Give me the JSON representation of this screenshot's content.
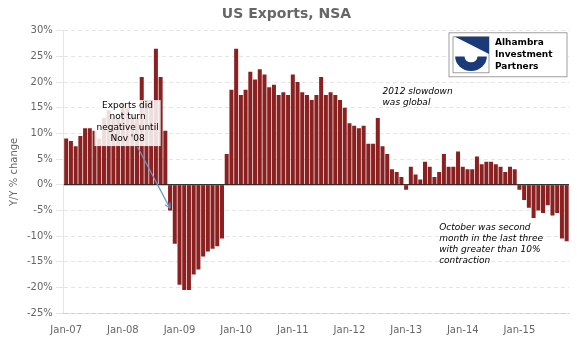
{
  "chart_data": {
    "type": "bar",
    "title": "US Exports, NSA",
    "ylabel": "Y/Y % change",
    "color": "#8B2020",
    "categories": [
      "Jan-07",
      null,
      null,
      null,
      null,
      null,
      null,
      null,
      null,
      null,
      null,
      null,
      "Jan-08",
      null,
      null,
      null,
      null,
      null,
      null,
      null,
      null,
      null,
      null,
      null,
      "Jan-09",
      null,
      null,
      null,
      null,
      null,
      null,
      null,
      null,
      null,
      null,
      null,
      "Jan-10",
      null,
      null,
      null,
      null,
      null,
      null,
      null,
      null,
      null,
      null,
      null,
      "Jan-11",
      null,
      null,
      null,
      null,
      null,
      null,
      null,
      null,
      null,
      null,
      null,
      "Jan-12",
      null,
      null,
      null,
      null,
      null,
      null,
      null,
      null,
      null,
      null,
      null,
      "Jan-13",
      null,
      null,
      null,
      null,
      null,
      null,
      null,
      null,
      null,
      null,
      null,
      "Jan-14",
      null,
      null,
      null,
      null,
      null,
      null,
      null,
      null,
      null,
      null,
      null,
      "Jan-15",
      null,
      null,
      null,
      null,
      null,
      null,
      null,
      null,
      null,
      null
    ],
    "values": [
      9.0,
      8.5,
      7.5,
      9.5,
      11.0,
      11.0,
      10.5,
      9.0,
      13.0,
      14.5,
      13.0,
      13.0,
      16.0,
      15.0,
      13.5,
      13.0,
      21.0,
      16.5,
      16.5,
      26.5,
      21.0,
      10.5,
      -5.0,
      -11.5,
      -19.5,
      -20.5,
      -20.5,
      -17.5,
      -16.5,
      -14.0,
      -13.0,
      -12.5,
      -12.0,
      -10.5,
      6.0,
      18.5,
      26.5,
      17.5,
      18.5,
      22.0,
      20.5,
      22.5,
      21.5,
      19.0,
      19.5,
      17.5,
      18.0,
      17.5,
      21.5,
      20.0,
      18.0,
      17.5,
      16.5,
      17.5,
      21.0,
      17.5,
      18.0,
      17.5,
      16.5,
      15.0,
      12.0,
      11.5,
      11.0,
      11.5,
      8.0,
      8.0,
      13.0,
      7.5,
      6.0,
      3.0,
      2.5,
      1.5,
      -1.0,
      3.5,
      2.0,
      1.0,
      4.5,
      3.5,
      1.5,
      2.5,
      6.0,
      3.5,
      3.5,
      6.5,
      3.5,
      3.0,
      3.0,
      5.5,
      4.0,
      4.5,
      4.5,
      4.0,
      3.5,
      2.5,
      3.5,
      3.0,
      -1.0,
      -3.0,
      -4.5,
      -6.5,
      -5.0,
      -5.5,
      -4.0,
      -6.0,
      -5.5,
      -10.5,
      -11.0
    ],
    "ylim": [
      -25,
      30
    ],
    "yticks": [
      {
        "value": -25,
        "label": "-25%"
      },
      {
        "value": -20,
        "label": "-20%"
      },
      {
        "value": -15,
        "label": "-15%"
      },
      {
        "value": -10,
        "label": "-10%"
      },
      {
        "value": -5,
        "label": "-5%"
      },
      {
        "value": 0,
        "label": "0%"
      },
      {
        "value": 5,
        "label": "5%"
      },
      {
        "value": 10,
        "label": "10%"
      },
      {
        "value": 15,
        "label": "15%"
      },
      {
        "value": 20,
        "label": "20%"
      },
      {
        "value": 25,
        "label": "25%"
      },
      {
        "value": 30,
        "label": "30%"
      }
    ],
    "grid": true,
    "annotations": [
      "Exports did\nnot turn\nnegative until\nNov '08",
      "2012 slowdown\nwas global",
      "October was second\nmonth in the last three\nwith greater than 10%\ncontraction",
      "Alhambra\nInvestment\nPartners"
    ]
  }
}
